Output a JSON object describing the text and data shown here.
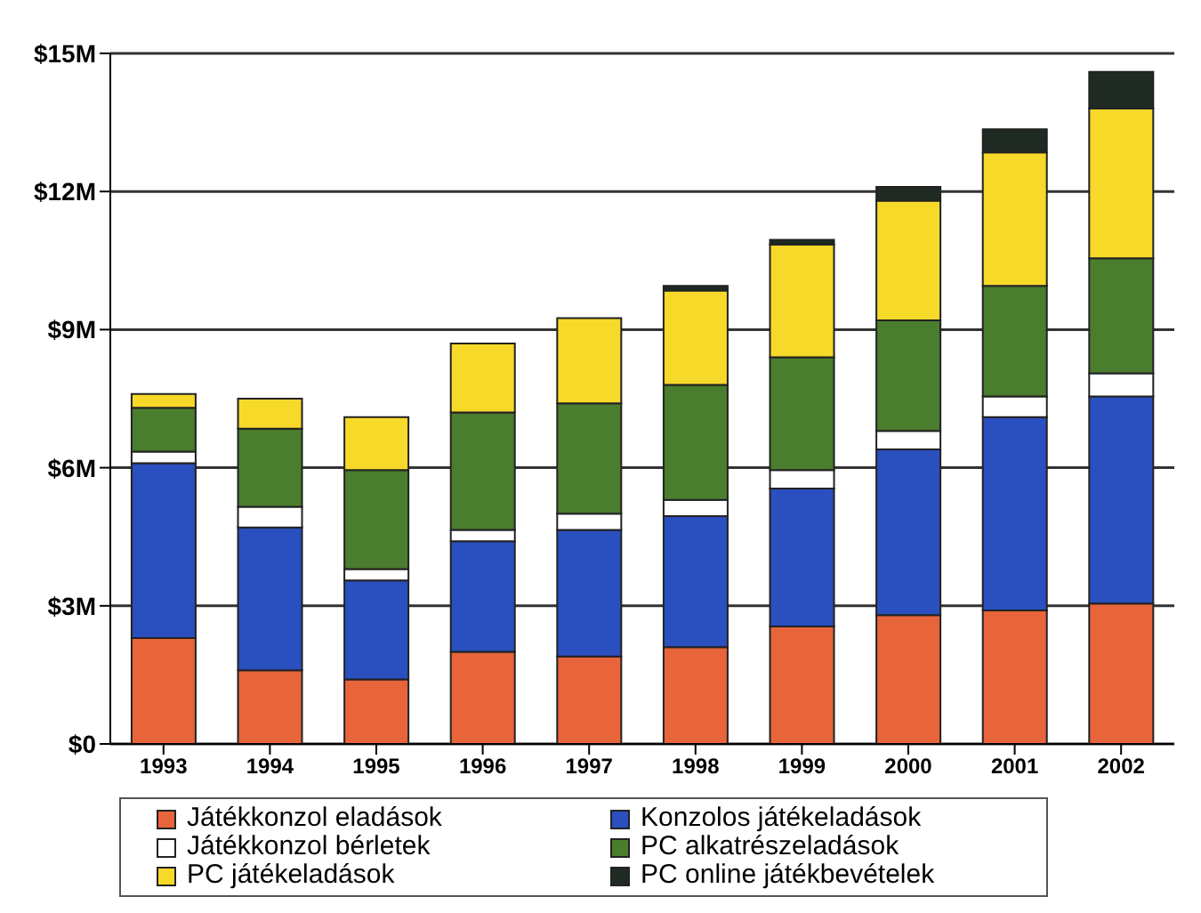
{
  "chart_data": {
    "type": "bar",
    "stacked": true,
    "categories": [
      "1993",
      "1994",
      "1995",
      "1996",
      "1997",
      "1998",
      "1999",
      "2000",
      "2001",
      "2002"
    ],
    "series": [
      {
        "name": "Játékkonzol eladások",
        "color": "#e8643a",
        "values": [
          2.3,
          1.6,
          1.4,
          2.0,
          1.9,
          2.1,
          2.55,
          2.8,
          2.9,
          3.05
        ]
      },
      {
        "name": "Konzolos játékeladások",
        "color": "#2a4fbf",
        "values": [
          3.8,
          3.1,
          2.15,
          2.4,
          2.75,
          2.85,
          3.0,
          3.6,
          4.2,
          4.5
        ]
      },
      {
        "name": "Játékkonzol bérletek",
        "color": "#ffffff",
        "values": [
          0.25,
          0.45,
          0.25,
          0.25,
          0.35,
          0.35,
          0.4,
          0.4,
          0.45,
          0.5
        ]
      },
      {
        "name": "PC alkatrészeladások",
        "color": "#4a7d2e",
        "values": [
          0.95,
          1.7,
          2.15,
          2.55,
          2.4,
          2.5,
          2.45,
          2.4,
          2.4,
          2.5
        ]
      },
      {
        "name": "PC játékeladások",
        "color": "#f7d92a",
        "values": [
          0.3,
          0.65,
          1.15,
          1.5,
          1.85,
          2.05,
          2.45,
          2.6,
          2.9,
          3.25
        ]
      },
      {
        "name": "PC online játékbevételek",
        "color": "#1e2a22",
        "values": [
          0,
          0,
          0,
          0,
          0,
          0.1,
          0.1,
          0.3,
          0.5,
          0.8
        ]
      }
    ],
    "ylim": [
      0,
      15
    ],
    "yticks": [
      {
        "value": 0,
        "label": "$0"
      },
      {
        "value": 3,
        "label": "$3M"
      },
      {
        "value": 6,
        "label": "$6M"
      },
      {
        "value": 9,
        "label": "$9M"
      },
      {
        "value": 12,
        "label": "$12M"
      },
      {
        "value": 15,
        "label": "$15M"
      }
    ],
    "grid": "y",
    "legend": "bottom"
  }
}
